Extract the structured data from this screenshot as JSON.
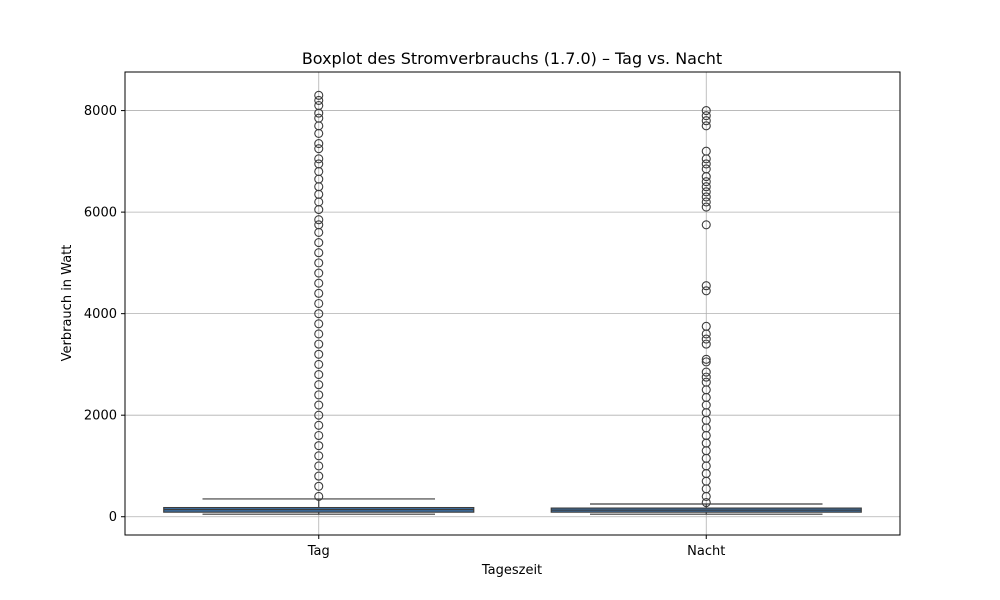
{
  "chart_data": {
    "type": "box",
    "title": "Boxplot des Stromverbrauchs (1.7.0) – Tag vs. Nacht",
    "xlabel": "Tageszeit",
    "ylabel": "Verbrauch in Watt",
    "categories": [
      "Tag",
      "Nacht"
    ],
    "ylim": [
      -360,
      8760
    ],
    "yticks": [
      0,
      2000,
      4000,
      6000,
      8000
    ],
    "grid": true,
    "boxes": [
      {
        "category": "Tag",
        "whisker_low": 50,
        "q1": 90,
        "median": 140,
        "q3": 180,
        "whisker_high": 350,
        "outliers": [
          400,
          600,
          800,
          1000,
          1200,
          1400,
          1600,
          1800,
          2000,
          2200,
          2400,
          2600,
          2800,
          3000,
          3200,
          3400,
          3600,
          3800,
          4000,
          4200,
          4400,
          4600,
          4800,
          5000,
          5200,
          5400,
          5600,
          5750,
          5850,
          6050,
          6200,
          6350,
          6500,
          6650,
          6800,
          6950,
          7050,
          7250,
          7350,
          7550,
          7700,
          7850,
          7950,
          8100,
          8200,
          8300
        ]
      },
      {
        "category": "Nacht",
        "whisker_low": 50,
        "q1": 90,
        "median": 130,
        "q3": 170,
        "whisker_high": 250,
        "outliers": [
          280,
          400,
          550,
          700,
          850,
          1000,
          1150,
          1300,
          1450,
          1600,
          1750,
          1900,
          2050,
          2200,
          2350,
          2500,
          2650,
          2750,
          2850,
          3050,
          3100,
          3400,
          3500,
          3600,
          3750,
          4450,
          4550,
          5750,
          6100,
          6200,
          6300,
          6400,
          6500,
          6600,
          6700,
          6850,
          6950,
          7050,
          7200,
          7700,
          7800,
          7900,
          8000
        ]
      }
    ],
    "colors": {
      "box_fill": "#3b75af",
      "line": "#3d3d3d",
      "grid": "#b0b0b0"
    }
  }
}
